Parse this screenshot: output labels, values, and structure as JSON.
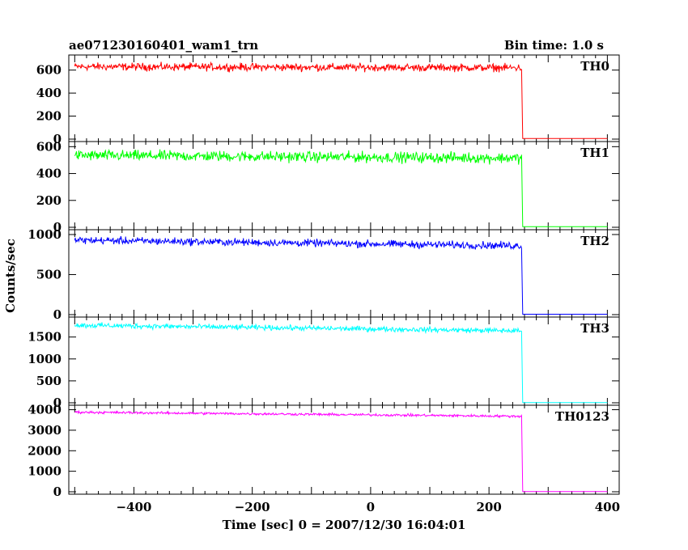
{
  "title_left": "ae071230160401_wam1_trn",
  "title_right": "Bin time: 1.0 s",
  "ylabel": "Counts/sec",
  "xlabel": "Time [sec] 0 = 2007/12/30 16:04:01",
  "chart_data": {
    "type": "line",
    "x_range": [
      -510,
      420
    ],
    "x_ticks": [
      -400,
      -200,
      0,
      200,
      400
    ],
    "drop_time": 255,
    "panels": [
      {
        "name": "TH0",
        "color": "#ff0000",
        "ylim": [
          0,
          710
        ],
        "yticks": [
          0,
          200,
          400,
          600
        ],
        "start_level": 630,
        "end_level": 620,
        "noise": 25,
        "after_level": 5
      },
      {
        "name": "TH1",
        "color": "#00ff00",
        "ylim": [
          0,
          620
        ],
        "yticks": [
          0,
          200,
          400,
          600
        ],
        "start_level": 535,
        "end_level": 515,
        "noise": 30,
        "after_level": 5
      },
      {
        "name": "TH2",
        "color": "#0000ff",
        "ylim": [
          0,
          1030
        ],
        "yticks": [
          0,
          500,
          1000
        ],
        "start_level": 930,
        "end_level": 860,
        "noise": 35,
        "after_level": 5
      },
      {
        "name": "TH3",
        "color": "#00ffff",
        "ylim": [
          0,
          1900
        ],
        "yticks": [
          0,
          500,
          1000,
          1500
        ],
        "start_level": 1770,
        "end_level": 1640,
        "noise": 45,
        "after_level": 5
      },
      {
        "name": "TH0123",
        "color": "#ff00ff",
        "ylim": [
          0,
          4100
        ],
        "yticks": [
          0,
          1000,
          2000,
          3000,
          4000
        ],
        "start_level": 3880,
        "end_level": 3680,
        "noise": 45,
        "after_level": 10
      }
    ]
  }
}
